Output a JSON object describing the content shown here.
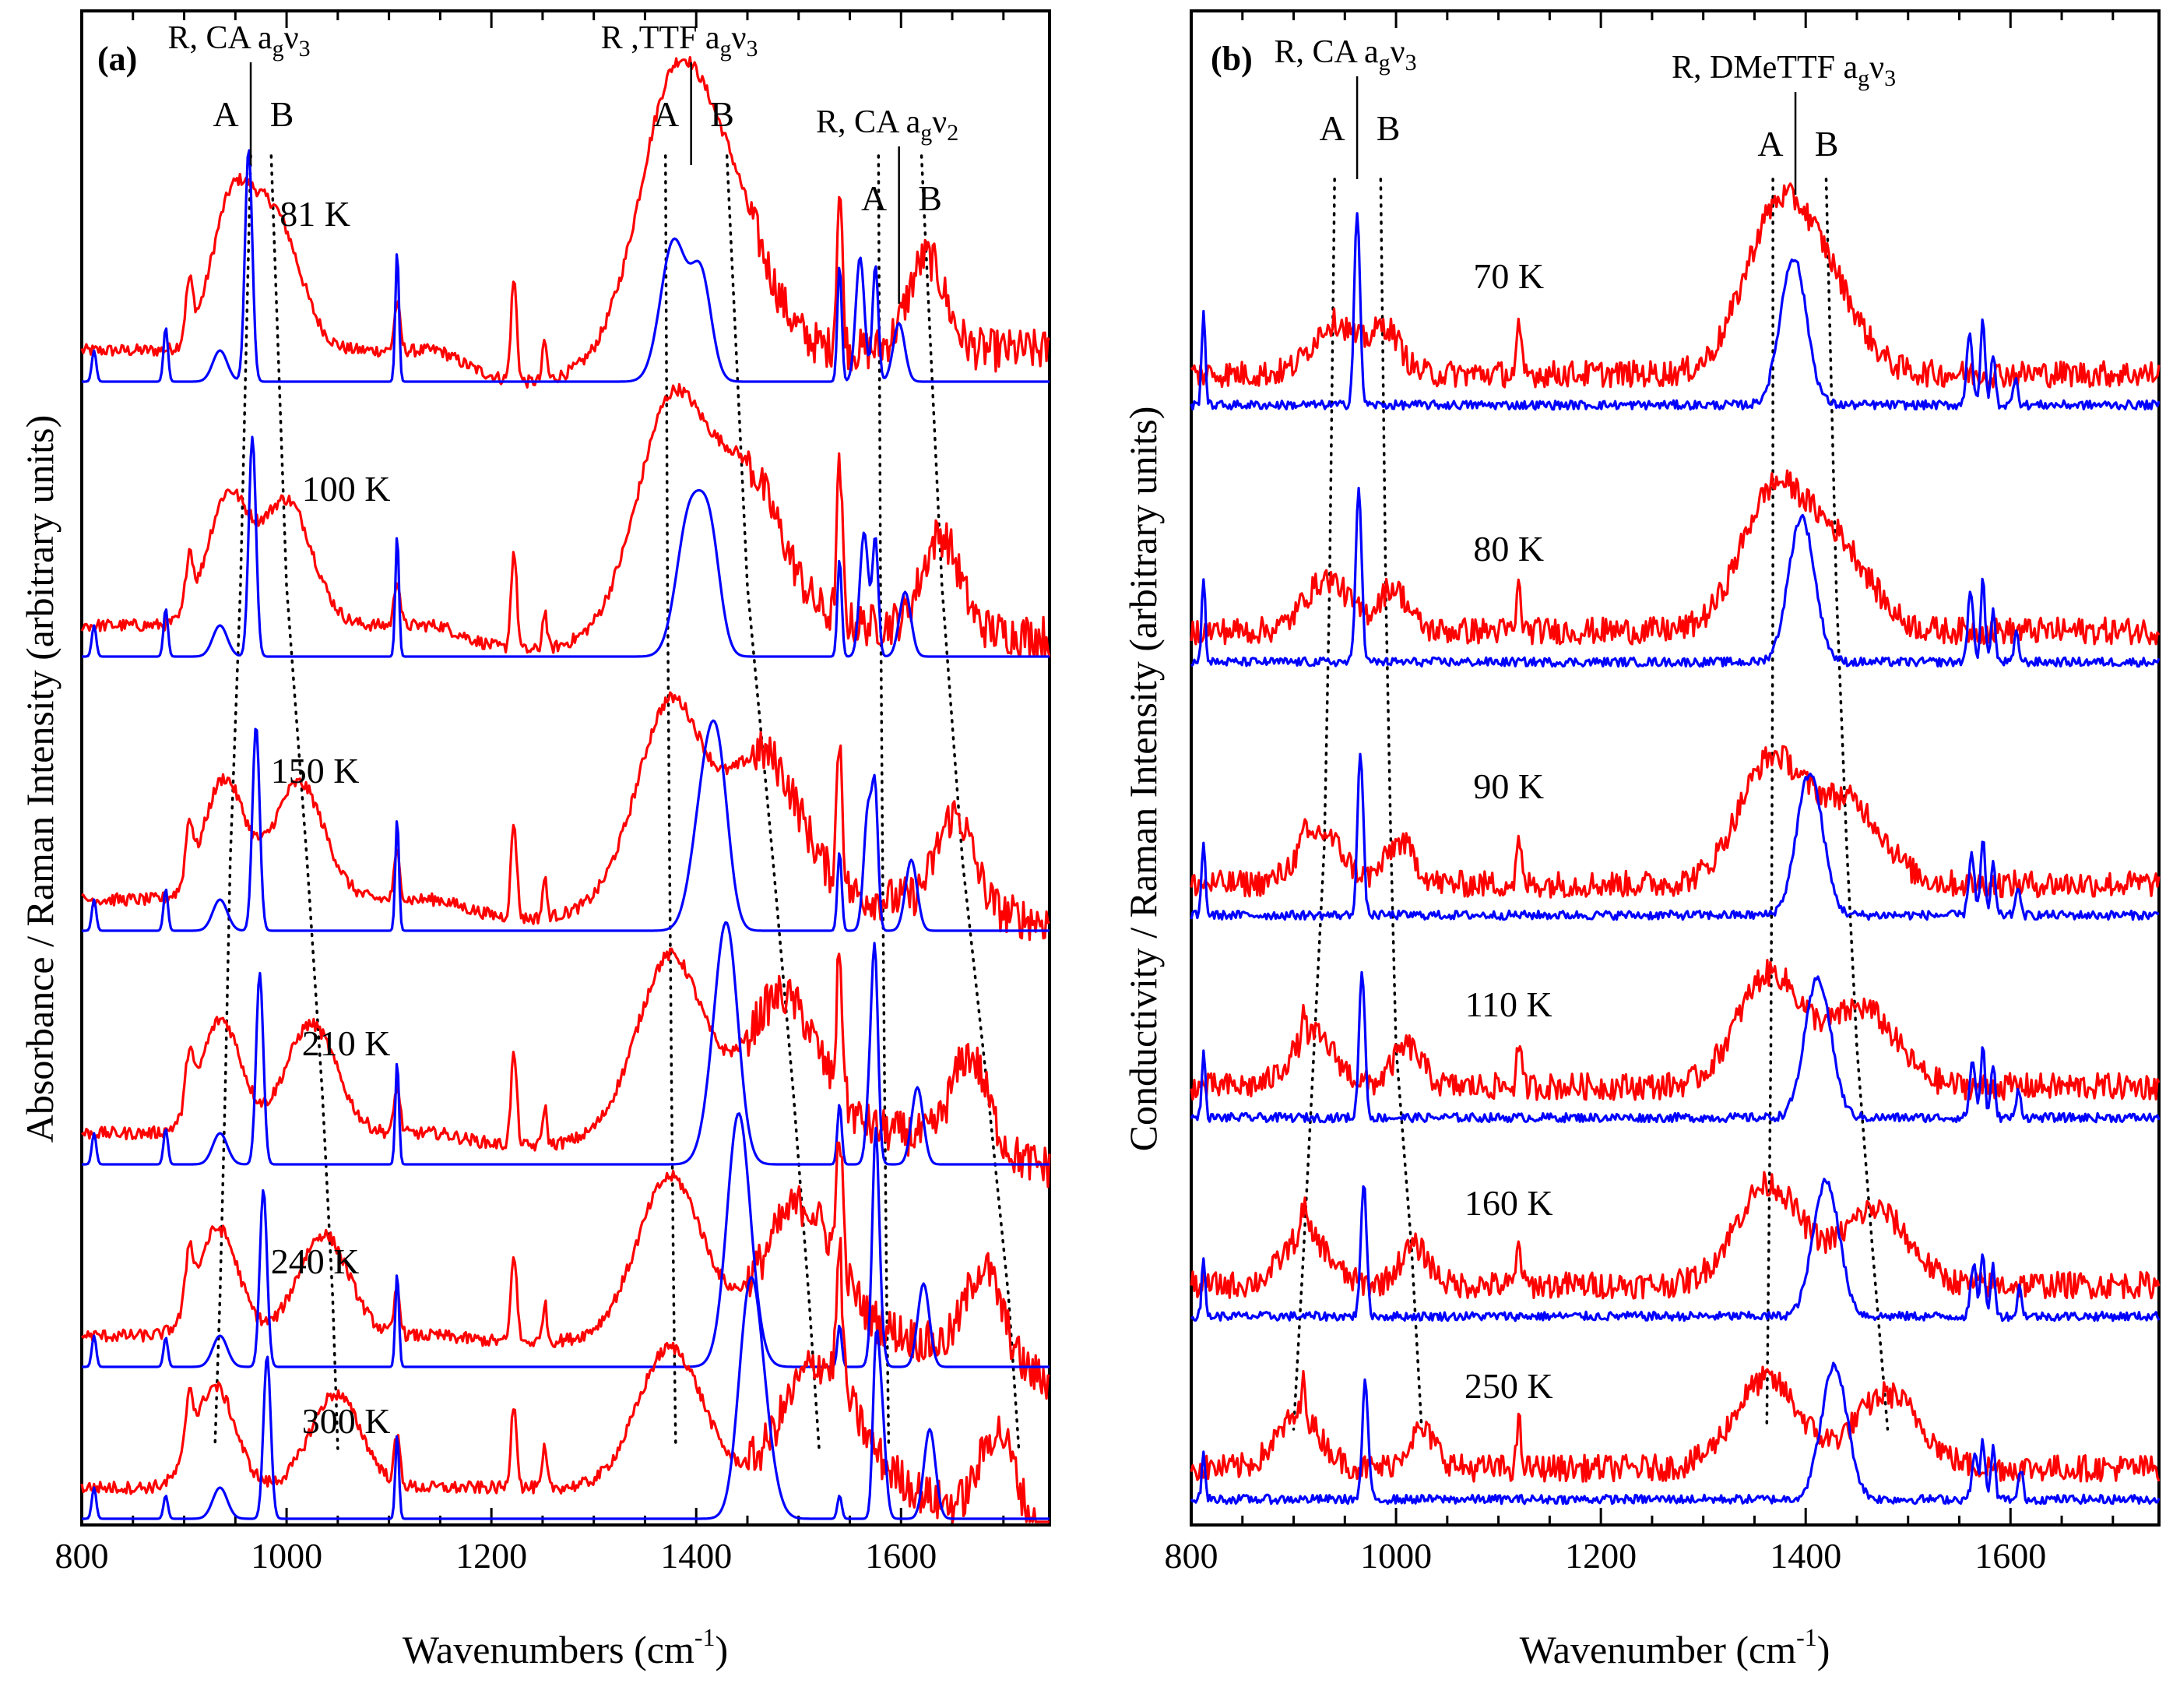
{
  "chart_data": [
    {
      "panel": "(a)",
      "type": "line",
      "xlabel": "Wavenumbers (cm",
      "xlabel_sup": "-1",
      "xlabel_close": ")",
      "ylabel": "Absorbance / Raman Intensity (arbitrary units)",
      "xlim": [
        800,
        1745
      ],
      "xticks": [
        800,
        1000,
        1200,
        1400,
        1600
      ],
      "series_colors": {
        "absorbance": "#ff0000",
        "raman": "#0000ff"
      },
      "temperatures": [
        "81 K",
        "100 K",
        "150 K",
        "210 K",
        "240 K",
        "300 K"
      ],
      "mode_labels": [
        {
          "text": "R, CA a",
          "sub": "g",
          "nu": "ν",
          "nusub": "3",
          "x": 965
        },
        {
          "text": "R ,TTF a",
          "sub": "g",
          "nu": "ν",
          "nusub": "3",
          "x": 1395
        },
        {
          "text": "R, CA a",
          "sub": "g",
          "nu": "ν",
          "nusub": "2",
          "x": 1598
        }
      ],
      "AB_labels": [
        "A",
        "B",
        "A",
        "B",
        "A",
        "B"
      ],
      "dotted_guides": [
        [
          965,
          955,
          945,
          940,
          935,
          930
        ],
        [
          985,
          1000,
          1020,
          1035,
          1045,
          1050
        ],
        [
          1370,
          1372,
          1374,
          1376,
          1378,
          1380
        ],
        [
          1430,
          1450,
          1475,
          1495,
          1510,
          1520
        ],
        [
          1578,
          1580,
          1582,
          1584,
          1586,
          1588
        ],
        [
          1620,
          1640,
          1660,
          1685,
          1705,
          1715
        ]
      ]
    },
    {
      "panel": "(b)",
      "type": "line",
      "xlabel": "Wavenumber (cm",
      "xlabel_sup": "-1",
      "xlabel_close": ")",
      "ylabel": "Conductivity / Raman Intensity (arbitrary units)",
      "xlim": [
        800,
        1745
      ],
      "xticks": [
        800,
        1000,
        1200,
        1400,
        1600
      ],
      "series_colors": {
        "conductivity": "#ff0000",
        "raman": "#0000ff"
      },
      "temperatures": [
        "70 K",
        "80 K",
        "90 K",
        "110 K",
        "160 K",
        "250 K"
      ],
      "mode_labels": [
        {
          "text": "R, CA a",
          "sub": "g",
          "nu": "ν",
          "nusub": "3",
          "x": 962
        },
        {
          "text": "R, DMeTTF a",
          "sub": "g",
          "nu": "ν",
          "nusub": "3",
          "x": 1390
        }
      ],
      "AB_labels": [
        "A",
        "B",
        "A",
        "B"
      ],
      "dotted_guides": [
        [
          940,
          935,
          930,
          920,
          910,
          900
        ],
        [
          985,
          990,
          995,
          1000,
          1015,
          1025
        ],
        [
          1368,
          1368,
          1367,
          1366,
          1364,
          1362
        ],
        [
          1420,
          1430,
          1440,
          1450,
          1465,
          1480
        ]
      ]
    }
  ]
}
